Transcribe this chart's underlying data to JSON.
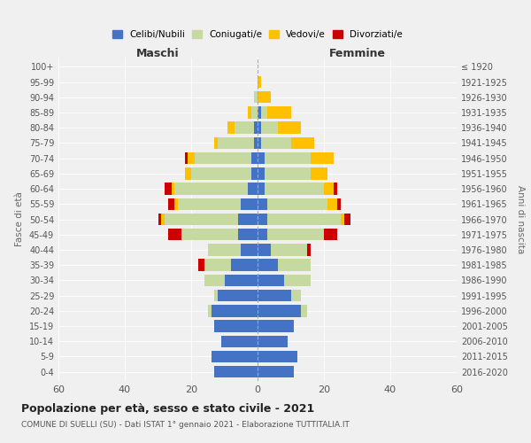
{
  "age_groups": [
    "0-4",
    "5-9",
    "10-14",
    "15-19",
    "20-24",
    "25-29",
    "30-34",
    "35-39",
    "40-44",
    "45-49",
    "50-54",
    "55-59",
    "60-64",
    "65-69",
    "70-74",
    "75-79",
    "80-84",
    "85-89",
    "90-94",
    "95-99",
    "100+"
  ],
  "birth_years": [
    "2016-2020",
    "2011-2015",
    "2006-2010",
    "2001-2005",
    "1996-2000",
    "1991-1995",
    "1986-1990",
    "1981-1985",
    "1976-1980",
    "1971-1975",
    "1966-1970",
    "1961-1965",
    "1956-1960",
    "1951-1955",
    "1946-1950",
    "1941-1945",
    "1936-1940",
    "1931-1935",
    "1926-1930",
    "1921-1925",
    "≤ 1920"
  ],
  "male": {
    "celibi": [
      13,
      14,
      11,
      13,
      14,
      12,
      10,
      8,
      5,
      6,
      6,
      5,
      3,
      2,
      2,
      1,
      1,
      0,
      0,
      0,
      0
    ],
    "coniugati": [
      0,
      0,
      0,
      0,
      1,
      1,
      6,
      8,
      10,
      17,
      22,
      19,
      22,
      18,
      17,
      11,
      6,
      2,
      1,
      0,
      0
    ],
    "vedovi": [
      0,
      0,
      0,
      0,
      0,
      0,
      0,
      0,
      0,
      0,
      1,
      1,
      1,
      2,
      2,
      1,
      2,
      1,
      0,
      0,
      0
    ],
    "divorziati": [
      0,
      0,
      0,
      0,
      0,
      0,
      0,
      2,
      0,
      4,
      1,
      2,
      2,
      0,
      1,
      0,
      0,
      0,
      0,
      0,
      0
    ]
  },
  "female": {
    "nubili": [
      11,
      12,
      9,
      11,
      13,
      10,
      8,
      6,
      4,
      3,
      3,
      3,
      2,
      2,
      2,
      1,
      1,
      1,
      0,
      0,
      0
    ],
    "coniugate": [
      0,
      0,
      0,
      0,
      2,
      3,
      8,
      10,
      11,
      17,
      22,
      18,
      18,
      14,
      14,
      9,
      5,
      2,
      0,
      0,
      0
    ],
    "vedove": [
      0,
      0,
      0,
      0,
      0,
      0,
      0,
      0,
      0,
      0,
      1,
      3,
      3,
      5,
      7,
      7,
      7,
      7,
      4,
      1,
      0
    ],
    "divorziate": [
      0,
      0,
      0,
      0,
      0,
      0,
      0,
      0,
      1,
      4,
      2,
      1,
      1,
      0,
      0,
      0,
      0,
      0,
      0,
      0,
      0
    ]
  },
  "colors": {
    "celibi": "#4472c4",
    "coniugati": "#c5d9a0",
    "vedovi": "#ffc000",
    "divorziati": "#cc0000"
  },
  "xlim": 60,
  "title": "Popolazione per età, sesso e stato civile - 2021",
  "subtitle": "COMUNE DI SUELLI (SU) - Dati ISTAT 1° gennaio 2021 - Elaborazione TUTTITALIA.IT",
  "ylabel_left": "Fasce di età",
  "ylabel_right": "Anni di nascita",
  "xlabel_male": "Maschi",
  "xlabel_female": "Femmine",
  "legend_labels": [
    "Celibi/Nubili",
    "Coniugati/e",
    "Vedovi/e",
    "Divorziati/e"
  ],
  "background_color": "#f0f0f0"
}
